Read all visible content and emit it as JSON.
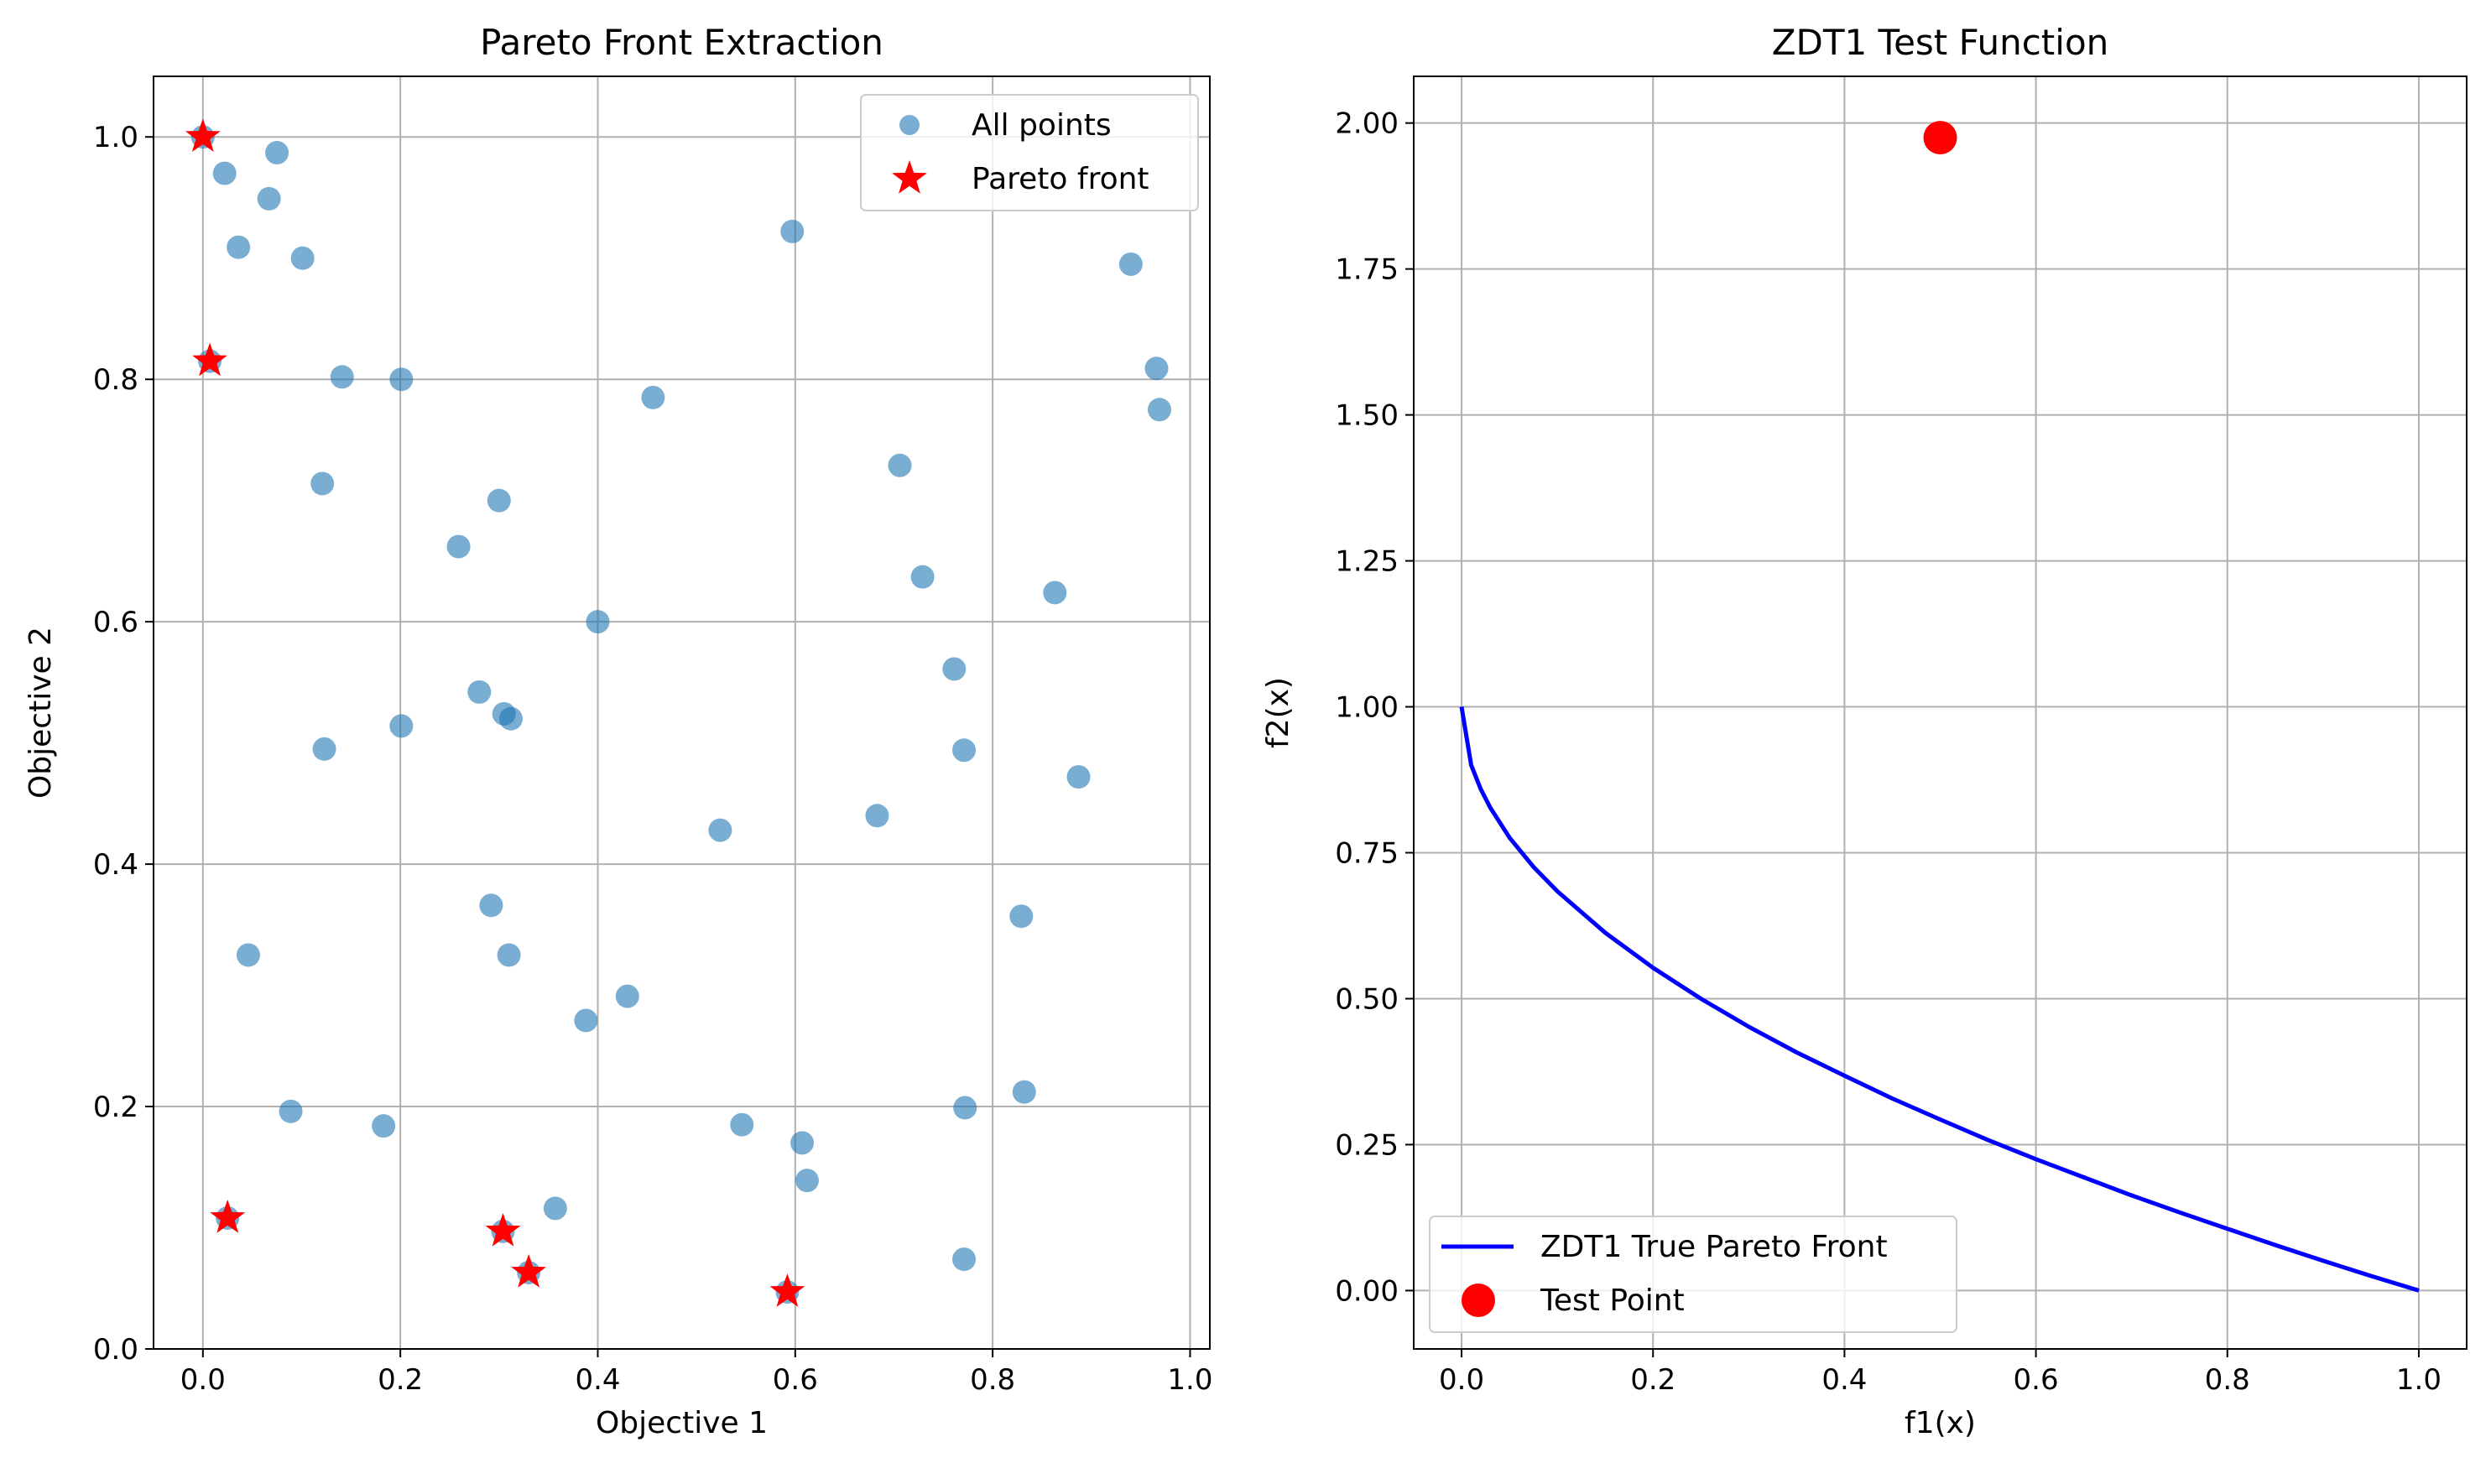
{
  "chart_data": [
    {
      "type": "scatter",
      "title": "Pareto Front Extraction",
      "xlabel": "Objective 1",
      "ylabel": "Objective 2",
      "xlim": [
        -0.05,
        1.02
      ],
      "ylim": [
        0.0,
        1.05
      ],
      "xticks": [
        0.0,
        0.2,
        0.4,
        0.6,
        0.8,
        1.0
      ],
      "xtick_labels": [
        "0.0",
        "0.2",
        "0.4",
        "0.6",
        "0.8",
        "1.0"
      ],
      "yticks": [
        0.0,
        0.2,
        0.4,
        0.6,
        0.8,
        1.0
      ],
      "ytick_labels": [
        "0.0",
        "0.2",
        "0.4",
        "0.6",
        "0.8",
        "1.0"
      ],
      "grid": true,
      "legend_position": "top-right",
      "series": [
        {
          "name": "All points",
          "marker": "circle",
          "color": "#1f77b4",
          "opacity": 0.6,
          "x": [
            0.0,
            0.022,
            0.075,
            0.067,
            0.036,
            0.101,
            0.597,
            0.94,
            0.966,
            0.969,
            0.007,
            0.141,
            0.201,
            0.456,
            0.121,
            0.706,
            0.3,
            0.259,
            0.729,
            0.863,
            0.4,
            0.761,
            0.28,
            0.305,
            0.312,
            0.123,
            0.201,
            0.771,
            0.887,
            0.524,
            0.683,
            0.292,
            0.829,
            0.046,
            0.31,
            0.43,
            0.388,
            0.832,
            0.089,
            0.183,
            0.772,
            0.546,
            0.607,
            0.612,
            0.357,
            0.771,
            0.025,
            0.304,
            0.33,
            0.592
          ],
          "y": [
            1.0,
            0.97,
            0.987,
            0.949,
            0.909,
            0.9,
            0.922,
            0.895,
            0.809,
            0.775,
            0.815,
            0.802,
            0.8,
            0.785,
            0.714,
            0.729,
            0.7,
            0.662,
            0.637,
            0.624,
            0.6,
            0.561,
            0.542,
            0.524,
            0.52,
            0.495,
            0.514,
            0.494,
            0.472,
            0.428,
            0.44,
            0.366,
            0.357,
            0.325,
            0.325,
            0.291,
            0.271,
            0.212,
            0.196,
            0.184,
            0.199,
            0.185,
            0.17,
            0.139,
            0.116,
            0.074,
            0.108,
            0.097,
            0.063,
            0.047
          ]
        },
        {
          "name": "Pareto front",
          "marker": "star",
          "color": "#ff0000",
          "x": [
            0.0,
            0.007,
            0.025,
            0.304,
            0.33,
            0.592
          ],
          "y": [
            1.0,
            0.815,
            0.108,
            0.097,
            0.063,
            0.047
          ]
        }
      ]
    },
    {
      "type": "line",
      "title": "ZDT1 Test Function",
      "xlabel": "f1(x)",
      "ylabel": "f2(x)",
      "xlim": [
        -0.05,
        1.05
      ],
      "ylim": [
        -0.1,
        2.08
      ],
      "xticks": [
        0.0,
        0.2,
        0.4,
        0.6,
        0.8,
        1.0
      ],
      "xtick_labels": [
        "0.0",
        "0.2",
        "0.4",
        "0.6",
        "0.8",
        "1.0"
      ],
      "yticks": [
        0.0,
        0.25,
        0.5,
        0.75,
        1.0,
        1.25,
        1.5,
        1.75,
        2.0
      ],
      "ytick_labels": [
        "0.00",
        "0.25",
        "0.50",
        "0.75",
        "1.00",
        "1.25",
        "1.50",
        "1.75",
        "2.00"
      ],
      "grid": true,
      "legend_position": "bottom-left",
      "series": [
        {
          "name": "ZDT1 True Pareto Front",
          "style": "line",
          "color": "#0000ff",
          "x": [
            0.0,
            0.01,
            0.02,
            0.03,
            0.05,
            0.075,
            0.1,
            0.15,
            0.2,
            0.25,
            0.3,
            0.35,
            0.4,
            0.45,
            0.5,
            0.55,
            0.6,
            0.65,
            0.7,
            0.75,
            0.8,
            0.85,
            0.9,
            0.95,
            1.0
          ],
          "y": [
            1.0,
            0.9,
            0.859,
            0.827,
            0.776,
            0.726,
            0.684,
            0.613,
            0.553,
            0.5,
            0.452,
            0.408,
            0.368,
            0.329,
            0.293,
            0.258,
            0.225,
            0.194,
            0.163,
            0.134,
            0.106,
            0.078,
            0.051,
            0.025,
            0.0
          ]
        },
        {
          "name": "Test Point",
          "style": "point",
          "color": "#ff0000",
          "x": [
            0.5
          ],
          "y": [
            1.975
          ]
        }
      ]
    }
  ]
}
